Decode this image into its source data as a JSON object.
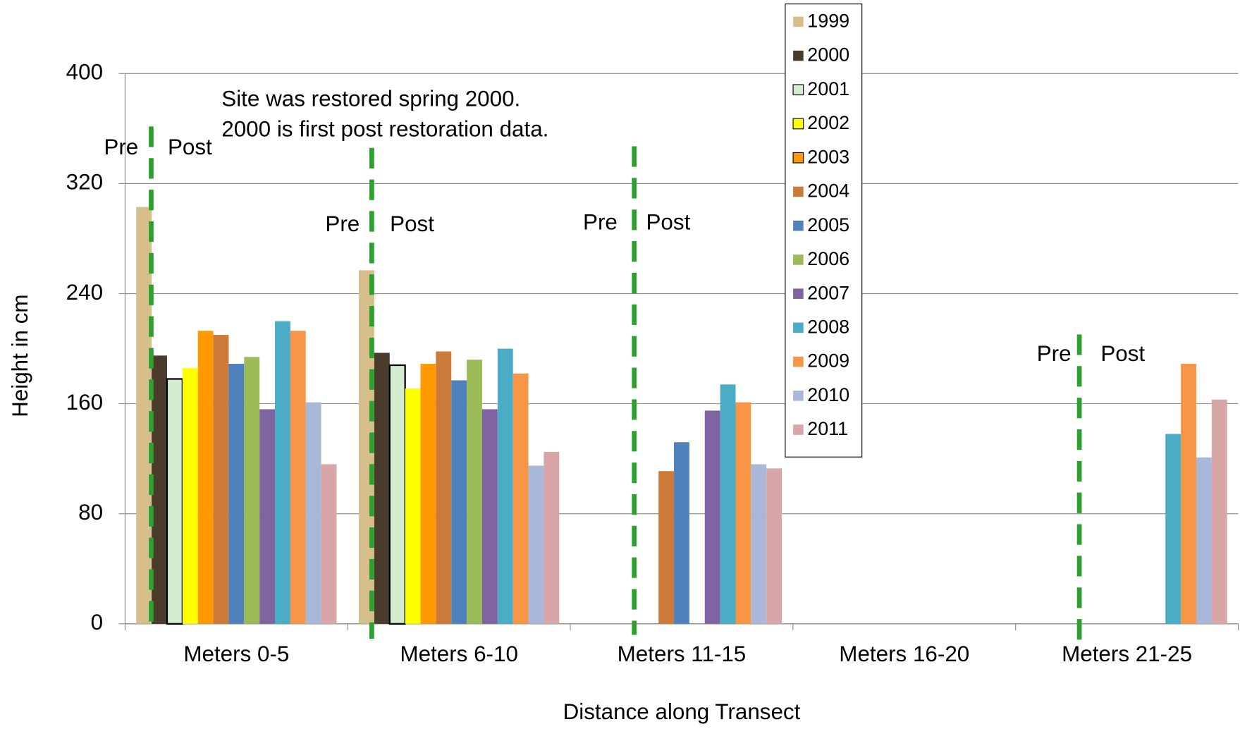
{
  "chart_data": {
    "type": "bar",
    "x_label": "Distance along Transect",
    "y_label": "Height in cm",
    "annotations": [
      "Site was restored spring 2000.",
      "2000 is first post restoration data."
    ],
    "markers": [
      {
        "pre": "Pre",
        "post": "Post"
      },
      {
        "pre": "Pre",
        "post": "Post"
      },
      {
        "pre": "Pre",
        "post": "Post"
      },
      {
        "pre": "Pre",
        "post": "Post"
      }
    ],
    "categories": [
      "Meters 0-5",
      "Meters 6-10",
      "Meters 11-15",
      "Meters 16-20",
      "Meters 21-25"
    ],
    "ylim": [
      0,
      400
    ],
    "yticks": [
      0,
      80,
      160,
      240,
      320,
      400
    ],
    "grid": true,
    "series": [
      {
        "name": "1999",
        "color": "#d6bf8a",
        "values": [
          303,
          257,
          null,
          null,
          null
        ]
      },
      {
        "name": "2000",
        "color": "#4a3c2c",
        "values": [
          195,
          197,
          null,
          null,
          null
        ]
      },
      {
        "name": "2001",
        "color": "#d4ecd0",
        "values": [
          178,
          188,
          null,
          null,
          null
        ]
      },
      {
        "name": "2002",
        "color": "#ffff00",
        "values": [
          186,
          171,
          null,
          null,
          null
        ]
      },
      {
        "name": "2003",
        "color": "#ff9900",
        "values": [
          213,
          189,
          null,
          null,
          null
        ]
      },
      {
        "name": "2004",
        "color": "#cc7a3a",
        "values": [
          210,
          198,
          111,
          null,
          null
        ]
      },
      {
        "name": "2005",
        "color": "#4f81bd",
        "values": [
          189,
          177,
          132,
          null,
          null
        ]
      },
      {
        "name": "2006",
        "color": "#9bbb59",
        "values": [
          194,
          192,
          null,
          null,
          null
        ]
      },
      {
        "name": "2007",
        "color": "#8064a2",
        "values": [
          156,
          156,
          155,
          null,
          null
        ]
      },
      {
        "name": "2008",
        "color": "#4bacc6",
        "values": [
          220,
          200,
          174,
          null,
          138
        ]
      },
      {
        "name": "2009",
        "color": "#f79646",
        "values": [
          213,
          182,
          161,
          null,
          189
        ]
      },
      {
        "name": "2010",
        "color": "#a9b7d8",
        "values": [
          161,
          115,
          116,
          null,
          121
        ]
      },
      {
        "name": "2011",
        "color": "#d9a6a8",
        "values": [
          116,
          125,
          113,
          null,
          163
        ]
      }
    ]
  }
}
